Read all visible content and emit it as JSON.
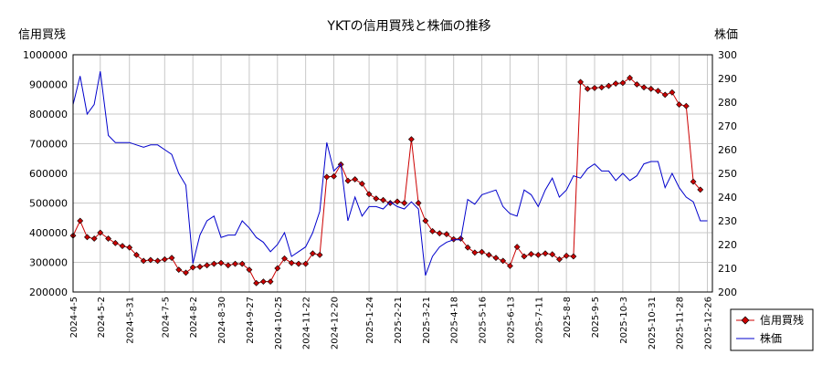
{
  "chart_data": {
    "type": "line",
    "title": "YKTの信用買残と株価の推移",
    "ylabel_left": "信用買残",
    "ylabel_right": "株価",
    "ylim_left": [
      200000,
      1000000
    ],
    "ylim_right": [
      200,
      300
    ],
    "yticks_left": [
      "200000",
      "300000",
      "400000",
      "500000",
      "600000",
      "700000",
      "800000",
      "900000",
      "1000000"
    ],
    "yticks_right": [
      "200",
      "210",
      "220",
      "230",
      "240",
      "250",
      "260",
      "270",
      "280",
      "290",
      "300"
    ],
    "x_range": [
      "2024-4-5",
      "2025-12-31"
    ],
    "xticks": [
      "2024-4-5",
      "2024-5-2",
      "2024-5-31",
      "2024-7-5",
      "2024-8-2",
      "2024-8-30",
      "2024-9-27",
      "2024-10-25",
      "2024-11-22",
      "2024-12-20",
      "2025-1-24",
      "2025-2-21",
      "2025-3-21",
      "2025-4-18",
      "2025-5-16",
      "2025-6-13",
      "2025-7-11",
      "2025-8-8",
      "2025-9-5",
      "2025-10-3",
      "2025-10-31",
      "2025-11-28",
      "2025-12-26"
    ],
    "grid": true,
    "legend_position": "bottom-right",
    "series": [
      {
        "name": "信用買残",
        "axis": "left",
        "color": "#cc0000",
        "marker": "diamond",
        "points": [
          [
            "2024-4-5",
            390000
          ],
          [
            "2024-4-12",
            440000
          ],
          [
            "2024-4-19",
            385000
          ],
          [
            "2024-4-26",
            380000
          ],
          [
            "2024-5-2",
            400000
          ],
          [
            "2024-5-10",
            380000
          ],
          [
            "2024-5-17",
            365000
          ],
          [
            "2024-5-24",
            355000
          ],
          [
            "2024-5-31",
            350000
          ],
          [
            "2024-6-7",
            325000
          ],
          [
            "2024-6-14",
            305000
          ],
          [
            "2024-6-21",
            308000
          ],
          [
            "2024-6-28",
            305000
          ],
          [
            "2024-7-5",
            310000
          ],
          [
            "2024-7-12",
            315000
          ],
          [
            "2024-7-19",
            275000
          ],
          [
            "2024-7-26",
            265000
          ],
          [
            "2024-8-2",
            283000
          ],
          [
            "2024-8-9",
            285000
          ],
          [
            "2024-8-16",
            290000
          ],
          [
            "2024-8-23",
            295000
          ],
          [
            "2024-8-30",
            298000
          ],
          [
            "2024-9-6",
            290000
          ],
          [
            "2024-9-13",
            295000
          ],
          [
            "2024-9-20",
            295000
          ],
          [
            "2024-9-27",
            275000
          ],
          [
            "2024-10-4",
            230000
          ],
          [
            "2024-10-11",
            235000
          ],
          [
            "2024-10-18",
            235000
          ],
          [
            "2024-10-25",
            280000
          ],
          [
            "2024-11-1",
            313000
          ],
          [
            "2024-11-8",
            298000
          ],
          [
            "2024-11-15",
            295000
          ],
          [
            "2024-11-22",
            295000
          ],
          [
            "2024-11-29",
            330000
          ],
          [
            "2024-12-6",
            325000
          ],
          [
            "2024-12-13",
            588000
          ],
          [
            "2024-12-20",
            590000
          ],
          [
            "2024-12-27",
            630000
          ],
          [
            "2025-1-3",
            575000
          ],
          [
            "2025-1-10",
            580000
          ],
          [
            "2025-1-17",
            565000
          ],
          [
            "2025-1-24",
            530000
          ],
          [
            "2025-1-31",
            515000
          ],
          [
            "2025-2-7",
            510000
          ],
          [
            "2025-2-14",
            500000
          ],
          [
            "2025-2-21",
            505000
          ],
          [
            "2025-2-28",
            500000
          ],
          [
            "2025-3-7",
            715000
          ],
          [
            "2025-3-14",
            500000
          ],
          [
            "2025-3-21",
            440000
          ],
          [
            "2025-3-28",
            405000
          ],
          [
            "2025-4-4",
            398000
          ],
          [
            "2025-4-11",
            395000
          ],
          [
            "2025-4-18",
            378000
          ],
          [
            "2025-4-25",
            380000
          ],
          [
            "2025-5-2",
            350000
          ],
          [
            "2025-5-9",
            333000
          ],
          [
            "2025-5-16",
            335000
          ],
          [
            "2025-5-23",
            325000
          ],
          [
            "2025-5-30",
            315000
          ],
          [
            "2025-6-6",
            305000
          ],
          [
            "2025-6-13",
            288000
          ],
          [
            "2025-6-20",
            352000
          ],
          [
            "2025-6-27",
            320000
          ],
          [
            "2025-7-4",
            328000
          ],
          [
            "2025-7-11",
            325000
          ],
          [
            "2025-7-18",
            330000
          ],
          [
            "2025-7-25",
            327000
          ],
          [
            "2025-8-1",
            310000
          ],
          [
            "2025-8-8",
            322000
          ],
          [
            "2025-8-15",
            320000
          ],
          [
            "2025-8-22",
            908000
          ],
          [
            "2025-8-29",
            885000
          ],
          [
            "2025-9-5",
            888000
          ],
          [
            "2025-9-12",
            890000
          ],
          [
            "2025-9-19",
            895000
          ],
          [
            "2025-9-26",
            903000
          ],
          [
            "2025-10-3",
            905000
          ],
          [
            "2025-10-10",
            922000
          ],
          [
            "2025-10-17",
            900000
          ],
          [
            "2025-10-24",
            890000
          ],
          [
            "2025-10-31",
            885000
          ],
          [
            "2025-11-7",
            878000
          ],
          [
            "2025-11-14",
            865000
          ],
          [
            "2025-11-21",
            873000
          ],
          [
            "2025-11-28",
            832000
          ],
          [
            "2025-12-5",
            827000
          ],
          [
            "2025-12-12",
            572000
          ],
          [
            "2025-12-19",
            545000
          ]
        ]
      },
      {
        "name": "株価",
        "axis": "right",
        "color": "#0000cc",
        "points": [
          [
            "2024-4-5",
            279
          ],
          [
            "2024-4-12",
            291
          ],
          [
            "2024-4-19",
            275
          ],
          [
            "2024-4-26",
            279
          ],
          [
            "2024-5-2",
            293
          ],
          [
            "2024-5-10",
            266
          ],
          [
            "2024-5-17",
            263
          ],
          [
            "2024-5-24",
            263
          ],
          [
            "2024-5-31",
            263
          ],
          [
            "2024-6-7",
            262
          ],
          [
            "2024-6-14",
            261
          ],
          [
            "2024-6-21",
            262
          ],
          [
            "2024-6-28",
            262
          ],
          [
            "2024-7-5",
            260
          ],
          [
            "2024-7-12",
            258
          ],
          [
            "2024-7-19",
            250
          ],
          [
            "2024-7-26",
            245
          ],
          [
            "2024-8-2",
            212
          ],
          [
            "2024-8-9",
            224
          ],
          [
            "2024-8-16",
            230
          ],
          [
            "2024-8-23",
            232
          ],
          [
            "2024-8-30",
            223
          ],
          [
            "2024-9-6",
            224
          ],
          [
            "2024-9-13",
            224
          ],
          [
            "2024-9-20",
            230
          ],
          [
            "2024-9-27",
            227
          ],
          [
            "2024-10-4",
            223
          ],
          [
            "2024-10-11",
            221
          ],
          [
            "2024-10-18",
            217
          ],
          [
            "2024-10-25",
            220
          ],
          [
            "2024-11-1",
            225
          ],
          [
            "2024-11-8",
            215
          ],
          [
            "2024-11-15",
            217
          ],
          [
            "2024-11-22",
            219
          ],
          [
            "2024-11-29",
            225
          ],
          [
            "2024-12-6",
            234
          ],
          [
            "2024-12-13",
            263
          ],
          [
            "2024-12-20",
            251
          ],
          [
            "2024-12-27",
            254
          ],
          [
            "2025-1-3",
            230
          ],
          [
            "2025-1-10",
            240
          ],
          [
            "2025-1-17",
            232
          ],
          [
            "2025-1-24",
            236
          ],
          [
            "2025-1-31",
            236
          ],
          [
            "2025-2-7",
            235
          ],
          [
            "2025-2-14",
            238
          ],
          [
            "2025-2-21",
            236
          ],
          [
            "2025-2-28",
            235
          ],
          [
            "2025-3-7",
            238
          ],
          [
            "2025-3-14",
            235
          ],
          [
            "2025-3-21",
            207
          ],
          [
            "2025-3-28",
            215
          ],
          [
            "2025-4-4",
            219
          ],
          [
            "2025-4-11",
            221
          ],
          [
            "2025-4-18",
            222
          ],
          [
            "2025-4-25",
            222
          ],
          [
            "2025-5-2",
            239
          ],
          [
            "2025-5-9",
            237
          ],
          [
            "2025-5-16",
            241
          ],
          [
            "2025-5-23",
            242
          ],
          [
            "2025-5-30",
            243
          ],
          [
            "2025-6-6",
            236
          ],
          [
            "2025-6-13",
            233
          ],
          [
            "2025-6-20",
            232
          ],
          [
            "2025-6-27",
            243
          ],
          [
            "2025-7-4",
            241
          ],
          [
            "2025-7-11",
            236
          ],
          [
            "2025-7-18",
            243
          ],
          [
            "2025-7-25",
            248
          ],
          [
            "2025-8-1",
            240
          ],
          [
            "2025-8-8",
            243
          ],
          [
            "2025-8-15",
            249
          ],
          [
            "2025-8-22",
            248
          ],
          [
            "2025-8-29",
            252
          ],
          [
            "2025-9-5",
            254
          ],
          [
            "2025-9-12",
            251
          ],
          [
            "2025-9-19",
            251
          ],
          [
            "2025-9-26",
            247
          ],
          [
            "2025-10-3",
            250
          ],
          [
            "2025-10-10",
            247
          ],
          [
            "2025-10-17",
            249
          ],
          [
            "2025-10-24",
            254
          ],
          [
            "2025-10-31",
            255
          ],
          [
            "2025-11-7",
            255
          ],
          [
            "2025-11-14",
            244
          ],
          [
            "2025-11-21",
            250
          ],
          [
            "2025-11-28",
            244
          ],
          [
            "2025-12-5",
            240
          ],
          [
            "2025-12-12",
            238
          ],
          [
            "2025-12-19",
            230
          ],
          [
            "2025-12-26",
            230
          ]
        ]
      }
    ]
  }
}
